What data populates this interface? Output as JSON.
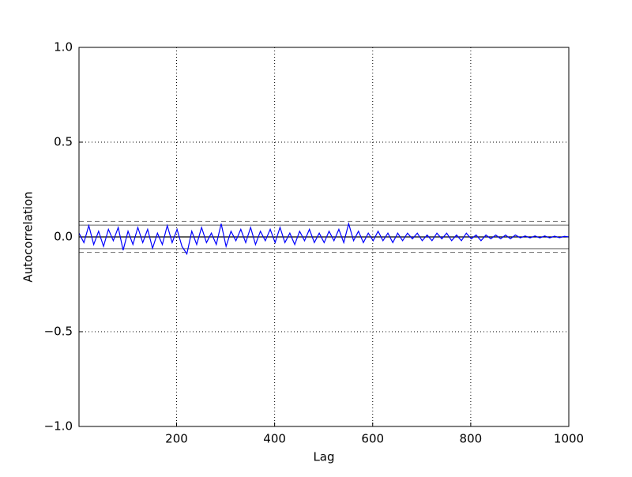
{
  "chart_data": {
    "type": "line",
    "x_label": "Lag",
    "y_label": "Autocorrelation",
    "x": [
      1,
      11,
      21,
      31,
      41,
      51,
      61,
      71,
      81,
      91,
      101,
      111,
      121,
      131,
      141,
      151,
      161,
      171,
      181,
      191,
      201,
      211,
      221,
      231,
      241,
      251,
      261,
      271,
      281,
      291,
      301,
      311,
      321,
      331,
      341,
      351,
      361,
      371,
      381,
      391,
      401,
      411,
      421,
      431,
      441,
      451,
      461,
      471,
      481,
      491,
      501,
      511,
      521,
      531,
      541,
      551,
      561,
      571,
      581,
      591,
      601,
      611,
      621,
      631,
      641,
      651,
      661,
      671,
      681,
      691,
      701,
      711,
      721,
      731,
      741,
      751,
      761,
      771,
      781,
      791,
      801,
      811,
      821,
      831,
      841,
      851,
      861,
      871,
      881,
      891,
      901,
      911,
      921,
      931,
      941,
      951,
      961,
      971,
      981,
      991,
      1000
    ],
    "series": [
      {
        "color": "#0000ff",
        "values": [
          0.02,
          -0.03,
          0.06,
          -0.04,
          0.03,
          -0.05,
          0.04,
          -0.02,
          0.05,
          -0.07,
          0.03,
          -0.04,
          0.05,
          -0.03,
          0.04,
          -0.06,
          0.02,
          -0.04,
          0.06,
          -0.03,
          0.04,
          -0.05,
          -0.09,
          0.03,
          -0.04,
          0.05,
          -0.03,
          0.02,
          -0.04,
          0.07,
          -0.05,
          0.03,
          -0.02,
          0.04,
          -0.03,
          0.05,
          -0.04,
          0.03,
          -0.02,
          0.04,
          -0.03,
          0.05,
          -0.03,
          0.02,
          -0.04,
          0.03,
          -0.02,
          0.04,
          -0.03,
          0.02,
          -0.03,
          0.03,
          -0.02,
          0.04,
          -0.03,
          0.07,
          -0.02,
          0.03,
          -0.03,
          0.02,
          -0.02,
          0.03,
          -0.02,
          0.02,
          -0.03,
          0.02,
          -0.02,
          0.02,
          -0.01,
          0.02,
          -0.02,
          0.01,
          -0.02,
          0.02,
          -0.01,
          0.02,
          -0.02,
          0.01,
          -0.02,
          0.02,
          -0.01,
          0.01,
          -0.02,
          0.01,
          -0.01,
          0.01,
          -0.01,
          0.01,
          -0.01,
          0.01,
          -0.005,
          0.005,
          -0.005,
          0.005,
          -0.005,
          0.005,
          -0.005,
          0.004,
          -0.004,
          0.003,
          0
        ]
      }
    ],
    "hlines": [
      {
        "y": 0.0815,
        "style": "dashed",
        "color": "#808080"
      },
      {
        "y": 0.062,
        "style": "solid",
        "color": "#808080"
      },
      {
        "y": 0,
        "style": "solid",
        "color": "#000000"
      },
      {
        "y": -0.062,
        "style": "solid",
        "color": "#808080"
      },
      {
        "y": -0.0815,
        "style": "dashed",
        "color": "#808080"
      }
    ],
    "xlim": [
      1,
      1000
    ],
    "xticks": [
      200,
      400,
      600,
      800,
      1000
    ],
    "ylim": [
      -1,
      1
    ],
    "yticks": [
      {
        "value": -1,
        "label": "−1.0"
      },
      {
        "value": -0.5,
        "label": "−0.5"
      },
      {
        "value": 0,
        "label": "0.0"
      },
      {
        "value": 0.5,
        "label": "0.5"
      },
      {
        "value": 1,
        "label": "1.0"
      }
    ],
    "grid": true
  }
}
